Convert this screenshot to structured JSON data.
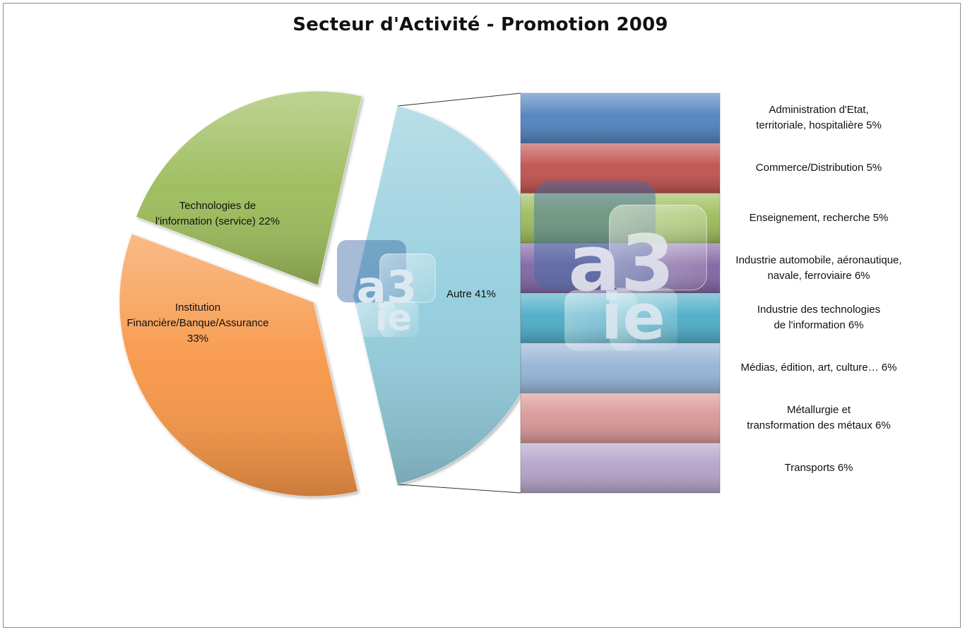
{
  "chart_data": {
    "type": "bar-of-pie",
    "title": "Secteur d'Activité - Promotion 2009",
    "pie": {
      "slices": [
        {
          "label": "Technologies de l'information (service) 22%",
          "value": 22,
          "color": "#9bbb59"
        },
        {
          "label": "Institution Financière/Banque/Assurance 33%",
          "value": 33,
          "color": "#f79646"
        },
        {
          "label": "Autre 41%",
          "value": 41,
          "color": "#93cddd"
        }
      ]
    },
    "bar": {
      "items": [
        {
          "label": "Administration d'Etat, territoriale, hospitalière 5%",
          "value": 5,
          "color": "#4f81bd"
        },
        {
          "label": "Commerce/Distribution 5%",
          "value": 5,
          "color": "#c0504d"
        },
        {
          "label": "Enseignement, recherche 5%",
          "value": 5,
          "color": "#9bbb59"
        },
        {
          "label": "Industrie automobile, aéronautique, navale, ferroviaire 6%",
          "value": 6,
          "color": "#8064a2"
        },
        {
          "label": "Industrie des technologies de l'information 6%",
          "value": 6,
          "color": "#4bacc6"
        },
        {
          "label": "Médias, édition, art, culture… 6%",
          "value": 6,
          "color": "#95b3d7"
        },
        {
          "label": "Métallurgie et transformation des métaux 6%",
          "value": 6,
          "color": "#d99694"
        },
        {
          "label": "Transports 6%",
          "value": 6,
          "color": "#b3a2c7"
        }
      ]
    }
  },
  "logo": {
    "text_top": "a3",
    "text_bottom": "ie"
  }
}
